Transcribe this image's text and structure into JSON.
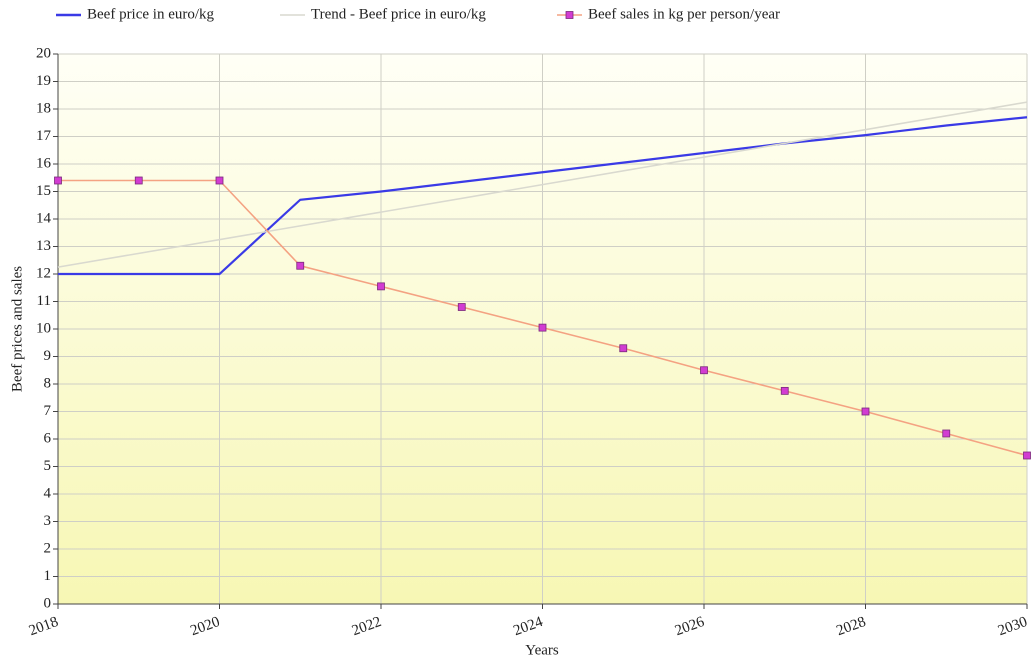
{
  "chart_data": {
    "type": "line",
    "x_label": "Years",
    "y_label": "Beef prices and sales",
    "x": [
      2018,
      2019,
      2020,
      2021,
      2022,
      2023,
      2024,
      2025,
      2026,
      2027,
      2028,
      2029,
      2030
    ],
    "series": [
      {
        "name": "Beef price in euro/kg",
        "color": "#3a3ae6",
        "marker": false,
        "values": [
          12,
          12,
          12,
          14.7,
          15.0,
          15.35,
          15.7,
          16.05,
          16.4,
          16.75,
          17.05,
          17.4,
          17.7
        ]
      },
      {
        "name": "Trend - Beef price in euro/kg",
        "color": "#d9d9cf",
        "marker": false,
        "x": [
          2018,
          2030
        ],
        "values": [
          12.25,
          18.25
        ]
      },
      {
        "name": "Beef sales in kg per person/year",
        "color": "#f4a282",
        "marker": true,
        "marker_color": "#d23cd2",
        "values": [
          15.4,
          15.4,
          15.4,
          12.3,
          11.55,
          10.8,
          10.05,
          9.3,
          8.5,
          7.75,
          7.0,
          6.2,
          5.4
        ]
      }
    ],
    "xlim": [
      2018,
      2030
    ],
    "xticks": [
      2018,
      2020,
      2022,
      2024,
      2026,
      2028,
      2030
    ],
    "ylim": [
      0,
      20
    ],
    "yticks": [
      0,
      1,
      2,
      3,
      4,
      5,
      6,
      7,
      8,
      9,
      10,
      11,
      12,
      13,
      14,
      15,
      16,
      17,
      18,
      19,
      20
    ],
    "grid": true,
    "legend": "top"
  }
}
